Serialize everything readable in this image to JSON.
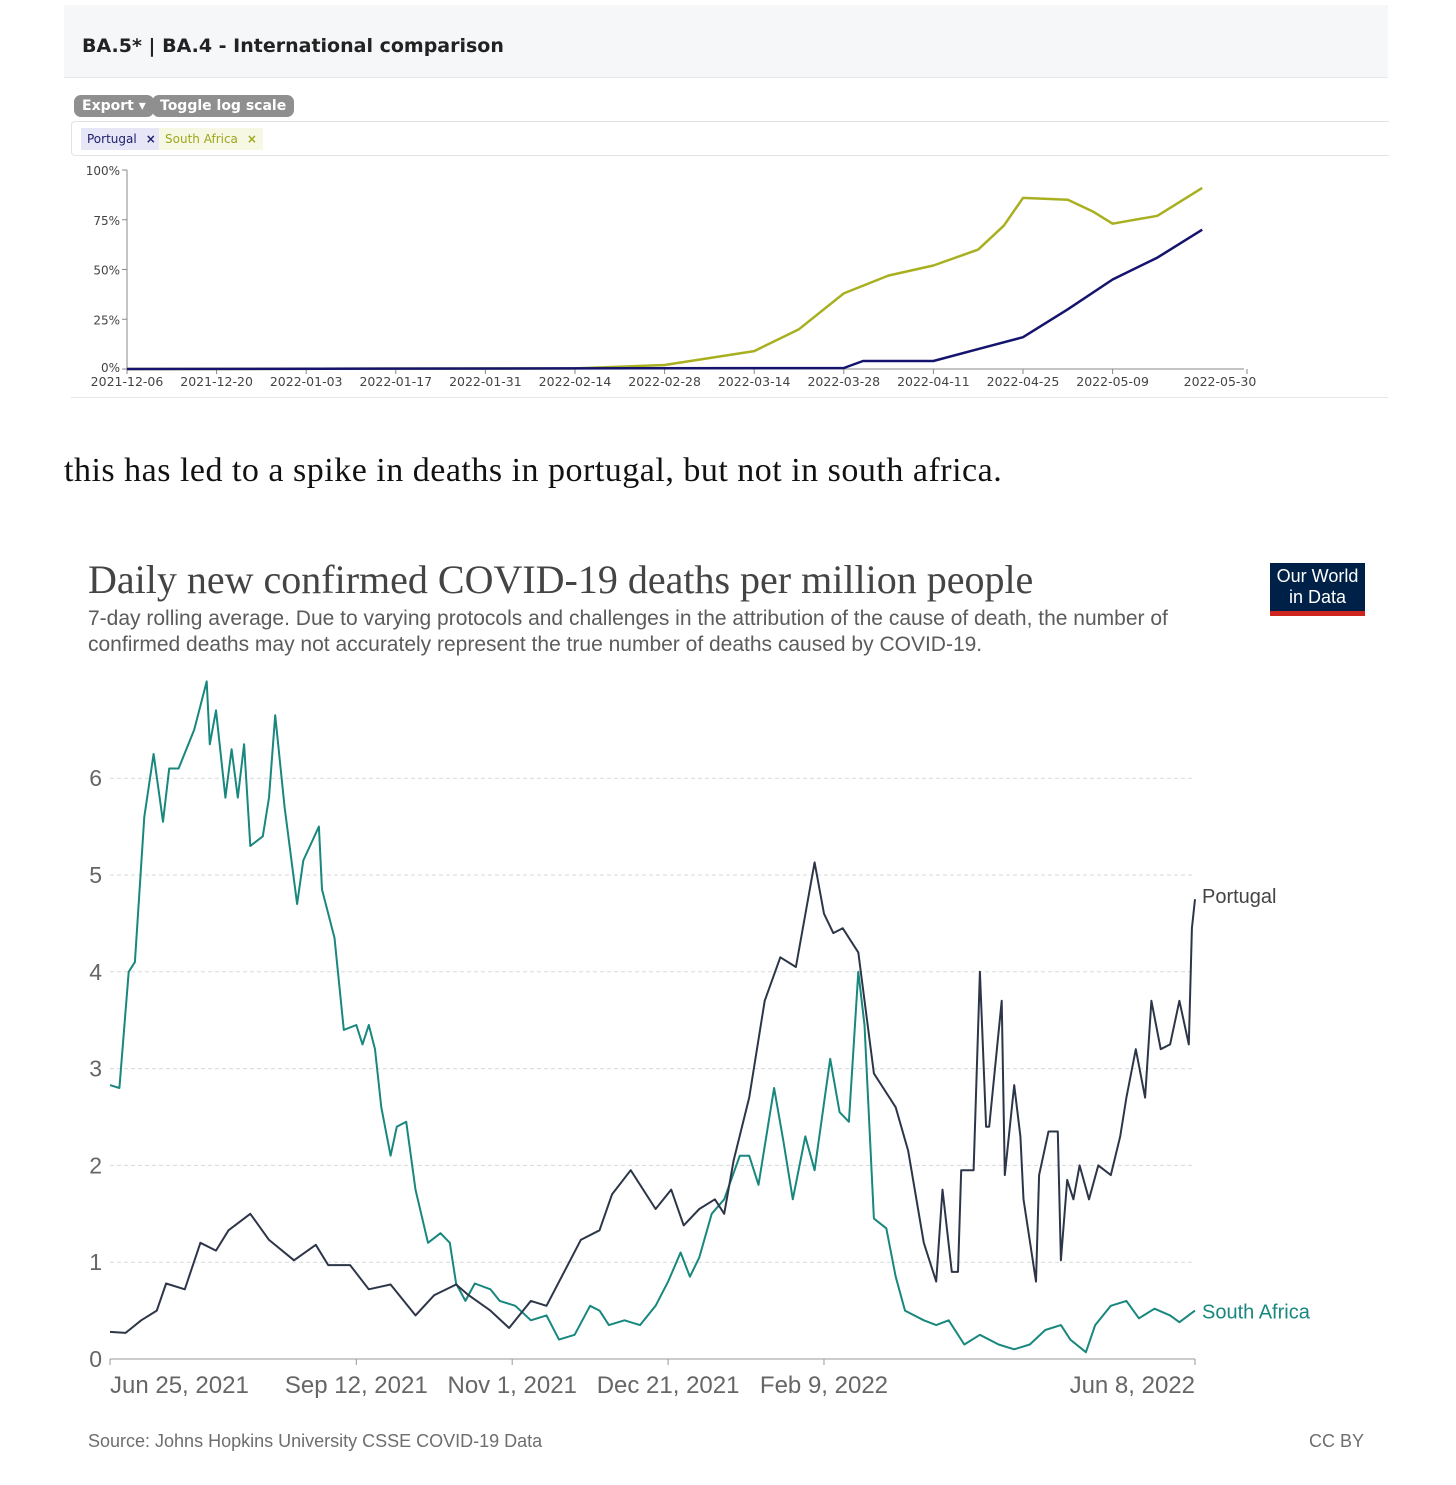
{
  "panel": {
    "title": "BA.5* | BA.4 - International comparison",
    "export_label": "Export ▾",
    "toggle_log_label": "Toggle log scale",
    "tags": [
      {
        "label": "Portugal",
        "remove": "×"
      },
      {
        "label": "South Africa",
        "remove": "×"
      }
    ]
  },
  "prose": "this has led to a spike in deaths in portugal, but not in south africa.",
  "owid": {
    "title": "Daily new confirmed COVID-19 deaths per million people",
    "subtitle": "7-day rolling average. Due to varying protocols and challenges in the attribution of the cause of death, the number of confirmed deaths may not accurately represent the true number of deaths caused by COVID-19.",
    "logo_line1": "Our World",
    "logo_line2": "in Data",
    "source": "Source: Johns Hopkins University CSSE COVID-19 Data",
    "license": "CC BY"
  },
  "chart_data": [
    {
      "type": "line",
      "title": "BA.5* | BA.4 - International comparison",
      "xlabel": "",
      "ylabel": "",
      "x_unit": "days since 2021-12-06",
      "xlim": [
        0,
        175
      ],
      "ylim": [
        0,
        100
      ],
      "x_ticks": [
        {
          "day": 0,
          "label": "2021-12-06"
        },
        {
          "day": 14,
          "label": "2021-12-20"
        },
        {
          "day": 28,
          "label": "2022-01-03"
        },
        {
          "day": 42,
          "label": "2022-01-17"
        },
        {
          "day": 56,
          "label": "2022-01-31"
        },
        {
          "day": 70,
          "label": "2022-02-14"
        },
        {
          "day": 84,
          "label": "2022-02-28"
        },
        {
          "day": 98,
          "label": "2022-03-14"
        },
        {
          "day": 112,
          "label": "2022-03-28"
        },
        {
          "day": 126,
          "label": "2022-04-11"
        },
        {
          "day": 140,
          "label": "2022-04-25"
        },
        {
          "day": 154,
          "label": "2022-05-09"
        },
        {
          "day": 175,
          "label": "2022-05-30"
        }
      ],
      "y_ticks": [
        {
          "v": 0,
          "label": "0%"
        },
        {
          "v": 25,
          "label": "25%"
        },
        {
          "v": 50,
          "label": "50%"
        },
        {
          "v": 75,
          "label": "75%"
        },
        {
          "v": 100,
          "label": "100%"
        }
      ],
      "series": [
        {
          "name": "South Africa",
          "color": "#a8b020",
          "points": [
            [
              0,
              0
            ],
            [
              70,
              0.3
            ],
            [
              84,
              2
            ],
            [
              98,
              9
            ],
            [
              105,
              20
            ],
            [
              112,
              38
            ],
            [
              119,
              47
            ],
            [
              126,
              52
            ],
            [
              133,
              60
            ],
            [
              137,
              72
            ],
            [
              140,
              86
            ],
            [
              147,
              85
            ],
            [
              151,
              79
            ],
            [
              154,
              73
            ],
            [
              161,
              77
            ],
            [
              168,
              91
            ]
          ]
        },
        {
          "name": "Portugal",
          "color": "#14146e",
          "points": [
            [
              0,
              0
            ],
            [
              112,
              0.5
            ],
            [
              115,
              4
            ],
            [
              126,
              4
            ],
            [
              133,
              10
            ],
            [
              140,
              16
            ],
            [
              147,
              30
            ],
            [
              154,
              45
            ],
            [
              161,
              56
            ],
            [
              168,
              70
            ]
          ]
        }
      ]
    },
    {
      "type": "line",
      "title": "Daily new confirmed COVID-19 deaths per million people",
      "x_unit": "days since 2021-06-25",
      "xlim": [
        0,
        348
      ],
      "ylim": [
        0,
        7
      ],
      "grid": true,
      "x_ticks": [
        {
          "day": 0,
          "label": "Jun 25, 2021"
        },
        {
          "day": 79,
          "label": "Sep 12, 2021"
        },
        {
          "day": 129,
          "label": "Nov 1, 2021"
        },
        {
          "day": 179,
          "label": "Dec 21, 2021"
        },
        {
          "day": 229,
          "label": "Feb 9, 2022"
        },
        {
          "day": 348,
          "label": "Jun 8, 2022"
        }
      ],
      "y_ticks": [
        {
          "v": 0,
          "label": "0"
        },
        {
          "v": 1,
          "label": "1"
        },
        {
          "v": 2,
          "label": "2"
        },
        {
          "v": 3,
          "label": "3"
        },
        {
          "v": 4,
          "label": "4"
        },
        {
          "v": 5,
          "label": "5"
        },
        {
          "v": 6,
          "label": "6"
        }
      ],
      "series": [
        {
          "name": "South Africa",
          "color": "#18877d",
          "points": [
            [
              0,
              2.83
            ],
            [
              3,
              2.8
            ],
            [
              6,
              4.0
            ],
            [
              8,
              4.1
            ],
            [
              11,
              5.6
            ],
            [
              14,
              6.25
            ],
            [
              17,
              5.55
            ],
            [
              19,
              6.1
            ],
            [
              22,
              6.1
            ],
            [
              27,
              6.5
            ],
            [
              31,
              7.0
            ],
            [
              32,
              6.35
            ],
            [
              34,
              6.7
            ],
            [
              37,
              5.8
            ],
            [
              39,
              6.3
            ],
            [
              41,
              5.8
            ],
            [
              43,
              6.35
            ],
            [
              45,
              5.3
            ],
            [
              49,
              5.4
            ],
            [
              51,
              5.8
            ],
            [
              53,
              6.65
            ],
            [
              56,
              5.7
            ],
            [
              60,
              4.7
            ],
            [
              62,
              5.15
            ],
            [
              67,
              5.5
            ],
            [
              68,
              4.85
            ],
            [
              72,
              4.35
            ],
            [
              75,
              3.4
            ],
            [
              79,
              3.45
            ],
            [
              81,
              3.25
            ],
            [
              83,
              3.45
            ],
            [
              85,
              3.2
            ],
            [
              87,
              2.6
            ],
            [
              90,
              2.1
            ],
            [
              92,
              2.4
            ],
            [
              95,
              2.45
            ],
            [
              98,
              1.75
            ],
            [
              102,
              1.2
            ],
            [
              106,
              1.3
            ],
            [
              109,
              1.2
            ],
            [
              111,
              0.78
            ],
            [
              114,
              0.6
            ],
            [
              117,
              0.78
            ],
            [
              122,
              0.72
            ],
            [
              125,
              0.6
            ],
            [
              130,
              0.55
            ],
            [
              135,
              0.4
            ],
            [
              140,
              0.45
            ],
            [
              144,
              0.2
            ],
            [
              149,
              0.25
            ],
            [
              154,
              0.55
            ],
            [
              157,
              0.5
            ],
            [
              160,
              0.35
            ],
            [
              165,
              0.4
            ],
            [
              170,
              0.35
            ],
            [
              175,
              0.55
            ],
            [
              179,
              0.8
            ],
            [
              183,
              1.1
            ],
            [
              186,
              0.85
            ],
            [
              189,
              1.05
            ],
            [
              193,
              1.5
            ],
            [
              197,
              1.65
            ],
            [
              202,
              2.1
            ],
            [
              205,
              2.1
            ],
            [
              208,
              1.8
            ],
            [
              213,
              2.8
            ],
            [
              216,
              2.25
            ],
            [
              219,
              1.65
            ],
            [
              223,
              2.3
            ],
            [
              226,
              1.95
            ],
            [
              231,
              3.1
            ],
            [
              234,
              2.55
            ],
            [
              237,
              2.45
            ],
            [
              240,
              4.0
            ],
            [
              242,
              3.45
            ],
            [
              245,
              1.45
            ],
            [
              249,
              1.35
            ],
            [
              252,
              0.85
            ],
            [
              255,
              0.5
            ],
            [
              261,
              0.4
            ],
            [
              265,
              0.35
            ],
            [
              269,
              0.4
            ],
            [
              274,
              0.15
            ],
            [
              279,
              0.25
            ],
            [
              285,
              0.15
            ],
            [
              290,
              0.1
            ],
            [
              295,
              0.15
            ],
            [
              300,
              0.3
            ],
            [
              305,
              0.35
            ],
            [
              308,
              0.2
            ],
            [
              313,
              0.07
            ],
            [
              316,
              0.35
            ],
            [
              321,
              0.55
            ],
            [
              326,
              0.6
            ],
            [
              330,
              0.42
            ],
            [
              335,
              0.52
            ],
            [
              340,
              0.45
            ],
            [
              343,
              0.38
            ],
            [
              348,
              0.5
            ]
          ]
        },
        {
          "name": "Portugal",
          "color": "#2d3648",
          "points": [
            [
              0,
              0.28
            ],
            [
              5,
              0.27
            ],
            [
              10,
              0.4
            ],
            [
              15,
              0.5
            ],
            [
              18,
              0.78
            ],
            [
              24,
              0.72
            ],
            [
              29,
              1.2
            ],
            [
              34,
              1.12
            ],
            [
              38,
              1.33
            ],
            [
              45,
              1.5
            ],
            [
              51,
              1.23
            ],
            [
              59,
              1.02
            ],
            [
              66,
              1.18
            ],
            [
              70,
              0.97
            ],
            [
              77,
              0.97
            ],
            [
              83,
              0.72
            ],
            [
              90,
              0.77
            ],
            [
              98,
              0.45
            ],
            [
              104,
              0.66
            ],
            [
              111,
              0.77
            ],
            [
              115,
              0.66
            ],
            [
              122,
              0.5
            ],
            [
              128,
              0.32
            ],
            [
              135,
              0.6
            ],
            [
              140,
              0.55
            ],
            [
              146,
              0.92
            ],
            [
              151,
              1.23
            ],
            [
              157,
              1.33
            ],
            [
              161,
              1.7
            ],
            [
              167,
              1.95
            ],
            [
              175,
              1.55
            ],
            [
              180,
              1.75
            ],
            [
              184,
              1.38
            ],
            [
              189,
              1.55
            ],
            [
              194,
              1.65
            ],
            [
              197,
              1.5
            ],
            [
              200,
              2.05
            ],
            [
              205,
              2.7
            ],
            [
              210,
              3.7
            ],
            [
              215,
              4.15
            ],
            [
              220,
              4.05
            ],
            [
              226,
              5.13
            ],
            [
              229,
              4.6
            ],
            [
              232,
              4.4
            ],
            [
              235,
              4.45
            ],
            [
              240,
              4.2
            ],
            [
              245,
              2.95
            ],
            [
              252,
              2.6
            ],
            [
              256,
              2.15
            ],
            [
              261,
              1.2
            ],
            [
              265,
              0.8
            ],
            [
              267,
              1.75
            ],
            [
              270,
              0.9
            ],
            [
              272,
              0.9
            ],
            [
              273,
              1.95
            ],
            [
              277,
              1.95
            ],
            [
              279,
              4.0
            ],
            [
              281,
              2.4
            ],
            [
              282,
              2.4
            ],
            [
              286,
              3.7
            ],
            [
              287,
              1.9
            ],
            [
              290,
              2.83
            ],
            [
              292,
              2.3
            ],
            [
              293,
              1.65
            ],
            [
              297,
              0.8
            ],
            [
              298,
              1.9
            ],
            [
              301,
              2.35
            ],
            [
              304,
              2.35
            ],
            [
              305,
              1.02
            ],
            [
              307,
              1.85
            ],
            [
              309,
              1.65
            ],
            [
              311,
              2.0
            ],
            [
              314,
              1.65
            ],
            [
              317,
              2.0
            ],
            [
              321,
              1.9
            ],
            [
              324,
              2.3
            ],
            [
              326,
              2.7
            ],
            [
              329,
              3.2
            ],
            [
              332,
              2.7
            ],
            [
              334,
              3.7
            ],
            [
              337,
              3.2
            ],
            [
              340,
              3.25
            ],
            [
              343,
              3.7
            ],
            [
              346,
              3.25
            ],
            [
              347,
              4.45
            ],
            [
              348,
              4.75
            ]
          ]
        }
      ]
    }
  ]
}
